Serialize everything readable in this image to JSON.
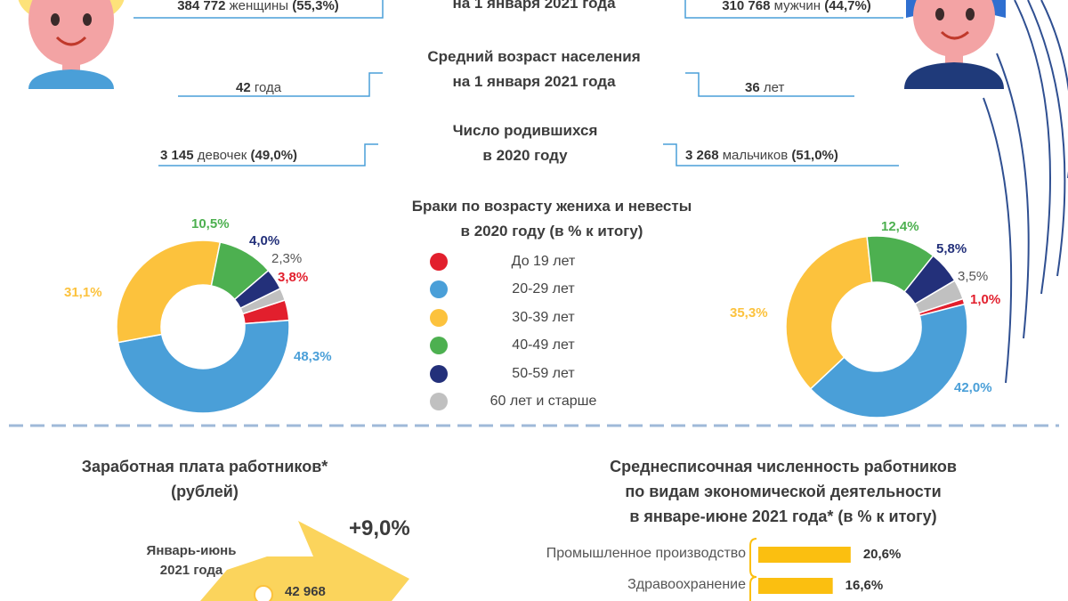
{
  "population": {
    "title_line2": "на 1 января 2021 года",
    "women_value": "384 772",
    "women_label": "женщины",
    "women_pct": "(55,3%)",
    "men_value": "310 768",
    "men_label": "мужчин",
    "men_pct": "(44,7%)"
  },
  "avg_age": {
    "title_line1": "Средний возраст населения",
    "title_line2": "на 1 января 2021 года",
    "women_value": "42",
    "women_unit": "года",
    "men_value": "36",
    "men_unit": "лет"
  },
  "births": {
    "title_line1": "Число родившихся",
    "title_line2": "в 2020 году",
    "girls_value": "3 145",
    "girls_label": "девочек",
    "girls_pct": "(49,0%)",
    "boys_value": "3 268",
    "boys_label": "мальчиков",
    "boys_pct": "(51,0%)"
  },
  "marriages": {
    "title_line1": "Браки по возрасту жениха и невесты",
    "title_line2": "в 2020 году (в % к итогу)"
  },
  "colors": {
    "red": "#e21f2d",
    "blue": "#4a9fd8",
    "yellow": "#fcc23d",
    "green": "#4db050",
    "navy": "#23307a",
    "gray": "#c0c0c0",
    "accent_blue": "#2f4f91",
    "line_blue": "#4a9fd8",
    "bar_yellow": "#fbbf10"
  },
  "salary": {
    "title_line1": "Заработная плата работников*",
    "title_line2": "(рублей)",
    "growth": "+9,0%",
    "period_line1": "Январь-июнь",
    "period_line2": "2021 года",
    "value": "42 968"
  },
  "employment": {
    "title_line1": "Среднесписочная численность работников",
    "title_line2": "по видам экономической деятельности",
    "title_line3": "в январе-июне 2021 года* (в % к итогу)"
  },
  "chart_data": [
    {
      "type": "pie",
      "categories": [
        "До 19 лет",
        "20-29 лет",
        "30-39 лет",
        "40-49 лет",
        "50-59 лет",
        "60 лет и старше"
      ],
      "values": [
        3.8,
        48.3,
        31.1,
        10.5,
        4.0,
        2.3
      ],
      "labels": [
        "3,8%",
        "48,3%",
        "31,1%",
        "10,5%",
        "4,0%",
        "2,3%"
      ],
      "legend_position": "center"
    },
    {
      "type": "pie",
      "categories": [
        "До 19 лет",
        "20-29 лет",
        "30-39 лет",
        "40-49 лет",
        "50-59 лет",
        "60 лет и старше"
      ],
      "values": [
        1.0,
        42.0,
        35.3,
        12.4,
        5.8,
        3.5
      ],
      "labels": [
        "1,0%",
        "42,0%",
        "35,3%",
        "12,4%",
        "5,8%",
        "3,5%"
      ],
      "legend_position": "center"
    },
    {
      "type": "bar",
      "categories": [
        "Промышленное производство",
        "Здравоохранение"
      ],
      "values": [
        20.6,
        16.6
      ],
      "labels": [
        "20,6%",
        "16,6%"
      ]
    }
  ]
}
